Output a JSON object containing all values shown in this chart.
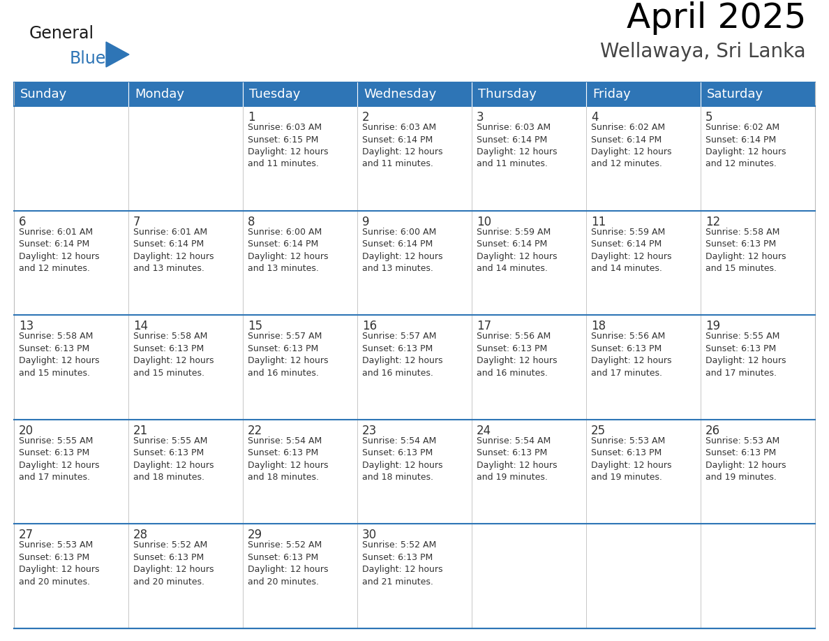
{
  "title": "April 2025",
  "subtitle": "Wellawaya, Sri Lanka",
  "header_bg_color": "#2E75B6",
  "header_text_color": "#FFFFFF",
  "row_separator_color": "#2E75B6",
  "cell_border_color": "#BBBBBB",
  "text_color": "#333333",
  "day_number_color": "#333333",
  "logo_general_color": "#1a1a1a",
  "logo_blue_color": "#2E75B6",
  "days_of_week": [
    "Sunday",
    "Monday",
    "Tuesday",
    "Wednesday",
    "Thursday",
    "Friday",
    "Saturday"
  ],
  "title_fontsize": 36,
  "subtitle_fontsize": 20,
  "header_fontsize": 13,
  "day_num_fontsize": 12,
  "cell_text_fontsize": 9,
  "calendar_data": [
    [
      {
        "day": "",
        "info": ""
      },
      {
        "day": "",
        "info": ""
      },
      {
        "day": "1",
        "info": "Sunrise: 6:03 AM\nSunset: 6:15 PM\nDaylight: 12 hours\nand 11 minutes."
      },
      {
        "day": "2",
        "info": "Sunrise: 6:03 AM\nSunset: 6:14 PM\nDaylight: 12 hours\nand 11 minutes."
      },
      {
        "day": "3",
        "info": "Sunrise: 6:03 AM\nSunset: 6:14 PM\nDaylight: 12 hours\nand 11 minutes."
      },
      {
        "day": "4",
        "info": "Sunrise: 6:02 AM\nSunset: 6:14 PM\nDaylight: 12 hours\nand 12 minutes."
      },
      {
        "day": "5",
        "info": "Sunrise: 6:02 AM\nSunset: 6:14 PM\nDaylight: 12 hours\nand 12 minutes."
      }
    ],
    [
      {
        "day": "6",
        "info": "Sunrise: 6:01 AM\nSunset: 6:14 PM\nDaylight: 12 hours\nand 12 minutes."
      },
      {
        "day": "7",
        "info": "Sunrise: 6:01 AM\nSunset: 6:14 PM\nDaylight: 12 hours\nand 13 minutes."
      },
      {
        "day": "8",
        "info": "Sunrise: 6:00 AM\nSunset: 6:14 PM\nDaylight: 12 hours\nand 13 minutes."
      },
      {
        "day": "9",
        "info": "Sunrise: 6:00 AM\nSunset: 6:14 PM\nDaylight: 12 hours\nand 13 minutes."
      },
      {
        "day": "10",
        "info": "Sunrise: 5:59 AM\nSunset: 6:14 PM\nDaylight: 12 hours\nand 14 minutes."
      },
      {
        "day": "11",
        "info": "Sunrise: 5:59 AM\nSunset: 6:14 PM\nDaylight: 12 hours\nand 14 minutes."
      },
      {
        "day": "12",
        "info": "Sunrise: 5:58 AM\nSunset: 6:13 PM\nDaylight: 12 hours\nand 15 minutes."
      }
    ],
    [
      {
        "day": "13",
        "info": "Sunrise: 5:58 AM\nSunset: 6:13 PM\nDaylight: 12 hours\nand 15 minutes."
      },
      {
        "day": "14",
        "info": "Sunrise: 5:58 AM\nSunset: 6:13 PM\nDaylight: 12 hours\nand 15 minutes."
      },
      {
        "day": "15",
        "info": "Sunrise: 5:57 AM\nSunset: 6:13 PM\nDaylight: 12 hours\nand 16 minutes."
      },
      {
        "day": "16",
        "info": "Sunrise: 5:57 AM\nSunset: 6:13 PM\nDaylight: 12 hours\nand 16 minutes."
      },
      {
        "day": "17",
        "info": "Sunrise: 5:56 AM\nSunset: 6:13 PM\nDaylight: 12 hours\nand 16 minutes."
      },
      {
        "day": "18",
        "info": "Sunrise: 5:56 AM\nSunset: 6:13 PM\nDaylight: 12 hours\nand 17 minutes."
      },
      {
        "day": "19",
        "info": "Sunrise: 5:55 AM\nSunset: 6:13 PM\nDaylight: 12 hours\nand 17 minutes."
      }
    ],
    [
      {
        "day": "20",
        "info": "Sunrise: 5:55 AM\nSunset: 6:13 PM\nDaylight: 12 hours\nand 17 minutes."
      },
      {
        "day": "21",
        "info": "Sunrise: 5:55 AM\nSunset: 6:13 PM\nDaylight: 12 hours\nand 18 minutes."
      },
      {
        "day": "22",
        "info": "Sunrise: 5:54 AM\nSunset: 6:13 PM\nDaylight: 12 hours\nand 18 minutes."
      },
      {
        "day": "23",
        "info": "Sunrise: 5:54 AM\nSunset: 6:13 PM\nDaylight: 12 hours\nand 18 minutes."
      },
      {
        "day": "24",
        "info": "Sunrise: 5:54 AM\nSunset: 6:13 PM\nDaylight: 12 hours\nand 19 minutes."
      },
      {
        "day": "25",
        "info": "Sunrise: 5:53 AM\nSunset: 6:13 PM\nDaylight: 12 hours\nand 19 minutes."
      },
      {
        "day": "26",
        "info": "Sunrise: 5:53 AM\nSunset: 6:13 PM\nDaylight: 12 hours\nand 19 minutes."
      }
    ],
    [
      {
        "day": "27",
        "info": "Sunrise: 5:53 AM\nSunset: 6:13 PM\nDaylight: 12 hours\nand 20 minutes."
      },
      {
        "day": "28",
        "info": "Sunrise: 5:52 AM\nSunset: 6:13 PM\nDaylight: 12 hours\nand 20 minutes."
      },
      {
        "day": "29",
        "info": "Sunrise: 5:52 AM\nSunset: 6:13 PM\nDaylight: 12 hours\nand 20 minutes."
      },
      {
        "day": "30",
        "info": "Sunrise: 5:52 AM\nSunset: 6:13 PM\nDaylight: 12 hours\nand 21 minutes."
      },
      {
        "day": "",
        "info": ""
      },
      {
        "day": "",
        "info": ""
      },
      {
        "day": "",
        "info": ""
      }
    ]
  ]
}
